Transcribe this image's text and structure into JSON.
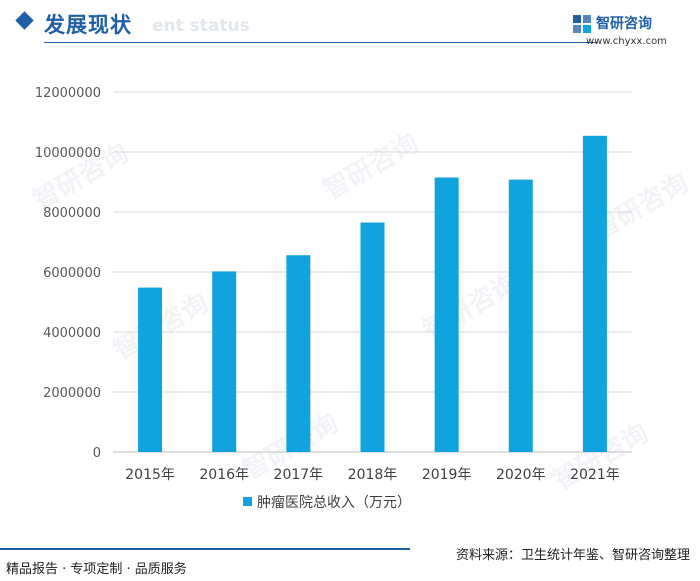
{
  "header": {
    "title": "发展现状",
    "ghost_text": "ent status"
  },
  "brand": {
    "name": "智研咨询",
    "url": "www.chyxx.com",
    "watermark": "智研咨询"
  },
  "colors": {
    "accent": "#1f5fa8",
    "bar": "#11a3dd"
  },
  "chart_data": {
    "type": "bar",
    "categories": [
      "2015年",
      "2016年",
      "2017年",
      "2018年",
      "2019年",
      "2020年",
      "2021年"
    ],
    "series": [
      {
        "name": "肿瘤医院总收入（万元）",
        "values": [
          5480000,
          6020000,
          6560000,
          7650000,
          9150000,
          9080000,
          10540000
        ]
      }
    ],
    "ylim": [
      0,
      12000000
    ],
    "yticks": [
      0,
      2000000,
      4000000,
      6000000,
      8000000,
      10000000,
      12000000
    ],
    "grid": true,
    "legend": "bottom-center"
  },
  "footer": {
    "left": "精品报告 · 专项定制 · 品质服务",
    "right": "资料来源：卫生统计年鉴、智研咨询整理"
  }
}
